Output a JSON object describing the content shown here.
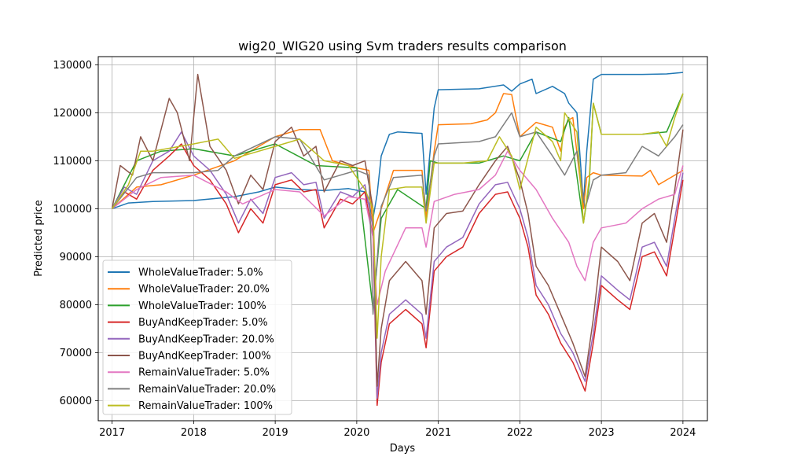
{
  "chart_data": {
    "type": "line",
    "title": "wig20_WIG20 using Svm traders results comparison",
    "xlabel": "Days",
    "ylabel": "Predicted price",
    "xlim": [
      2016.83,
      2024.3
    ],
    "ylim": [
      55800,
      131700
    ],
    "grid": true,
    "legend_position": "lower-left",
    "x_ticks": [
      {
        "value": 2017,
        "label": "2017"
      },
      {
        "value": 2018,
        "label": "2018"
      },
      {
        "value": 2019,
        "label": "2019"
      },
      {
        "value": 2020,
        "label": "2020"
      },
      {
        "value": 2021,
        "label": "2021"
      },
      {
        "value": 2022,
        "label": "2022"
      },
      {
        "value": 2023,
        "label": "2023"
      },
      {
        "value": 2024,
        "label": "2024"
      }
    ],
    "y_ticks": [
      {
        "value": 60000,
        "label": "60000"
      },
      {
        "value": 70000,
        "label": "70000"
      },
      {
        "value": 80000,
        "label": "80000"
      },
      {
        "value": 90000,
        "label": "90000"
      },
      {
        "value": 100000,
        "label": "100000"
      },
      {
        "value": 110000,
        "label": "110000"
      },
      {
        "value": 120000,
        "label": "120000"
      },
      {
        "value": 130000,
        "label": "130000"
      }
    ],
    "series": [
      {
        "name": "WholeValueTrader: 5.0%",
        "color": "#1f77b4",
        "x": [
          2017.0,
          2017.2,
          2017.5,
          2018.0,
          2018.5,
          2018.8,
          2019.0,
          2019.3,
          2019.6,
          2019.9,
          2020.1,
          2020.2,
          2020.25,
          2020.3,
          2020.4,
          2020.5,
          2020.8,
          2020.85,
          2020.95,
          2021.0,
          2021.5,
          2021.8,
          2021.9,
          2022.0,
          2022.15,
          2022.2,
          2022.4,
          2022.55,
          2022.6,
          2022.7,
          2022.78,
          2022.82,
          2022.9,
          2023.0,
          2023.5,
          2023.8,
          2024.0
        ],
        "y": [
          100000,
          101200,
          101500,
          101700,
          102500,
          103500,
          104500,
          104000,
          103800,
          104200,
          103500,
          98000,
          103000,
          111000,
          115500,
          116000,
          115700,
          103000,
          121000,
          124800,
          125000,
          125800,
          124500,
          126000,
          127000,
          124000,
          125500,
          124000,
          122000,
          120000,
          101000,
          112000,
          127000,
          128000,
          128000,
          128100,
          128400
        ]
      },
      {
        "name": "WholeValueTrader: 20.0%",
        "color": "#ff7f0e",
        "x": [
          2017.0,
          2017.3,
          2017.6,
          2018.0,
          2018.5,
          2019.0,
          2019.3,
          2019.55,
          2019.7,
          2020.0,
          2020.15,
          2020.2,
          2020.3,
          2020.45,
          2020.8,
          2020.85,
          2020.95,
          2021.0,
          2021.4,
          2021.6,
          2021.7,
          2021.8,
          2021.9,
          2022.0,
          2022.2,
          2022.4,
          2022.5,
          2022.55,
          2022.6,
          2022.65,
          2022.78,
          2022.82,
          2022.9,
          2023.0,
          2023.5,
          2023.6,
          2023.7,
          2024.0
        ],
        "y": [
          100000,
          104500,
          105000,
          107000,
          110000,
          115000,
          116500,
          116500,
          110000,
          108500,
          108000,
          95000,
          100000,
          108000,
          108000,
          98000,
          112000,
          117500,
          117700,
          118500,
          120000,
          124000,
          123800,
          115000,
          118000,
          117000,
          112000,
          117000,
          118500,
          119000,
          100000,
          106500,
          107500,
          107000,
          106800,
          108000,
          105000,
          108000
        ]
      },
      {
        "name": "WholeValueTrader: 100%",
        "color": "#2ca02c",
        "x": [
          2017.0,
          2017.3,
          2017.6,
          2018.0,
          2018.5,
          2019.0,
          2019.5,
          2020.0,
          2020.2,
          2020.3,
          2020.5,
          2020.85,
          2020.9,
          2021.0,
          2021.5,
          2021.8,
          2022.0,
          2022.2,
          2022.5,
          2022.6,
          2022.78,
          2022.85,
          2022.9,
          2023.0,
          2023.5,
          2023.8,
          2024.0
        ],
        "y": [
          100000,
          110000,
          112000,
          112500,
          111000,
          113500,
          109000,
          108500,
          79000,
          98000,
          104000,
          100000,
          110000,
          109500,
          109500,
          111000,
          110000,
          116000,
          114000,
          119000,
          97000,
          105000,
          122000,
          115500,
          115500,
          116000,
          124000
        ]
      },
      {
        "name": "BuyAndKeepTrader: 5.0%",
        "color": "#d62728",
        "x": [
          2017.0,
          2017.15,
          2017.3,
          2017.5,
          2017.7,
          2017.85,
          2018.0,
          2018.2,
          2018.4,
          2018.55,
          2018.7,
          2018.85,
          2019.0,
          2019.2,
          2019.35,
          2019.5,
          2019.6,
          2019.8,
          2019.95,
          2020.1,
          2020.2,
          2020.25,
          2020.3,
          2020.4,
          2020.6,
          2020.8,
          2020.85,
          2020.95,
          2021.1,
          2021.3,
          2021.5,
          2021.7,
          2021.85,
          2022.0,
          2022.1,
          2022.2,
          2022.35,
          2022.5,
          2022.65,
          2022.8,
          2022.9,
          2023.0,
          2023.2,
          2023.35,
          2023.5,
          2023.65,
          2023.8,
          2023.9,
          2024.0
        ],
        "y": [
          100000,
          103500,
          102000,
          108000,
          111000,
          113500,
          109000,
          106000,
          101000,
          95000,
          100000,
          97000,
          105000,
          106000,
          103500,
          104000,
          96000,
          102000,
          101000,
          103500,
          94000,
          59000,
          68000,
          76000,
          79000,
          76000,
          71000,
          87000,
          90000,
          92000,
          99000,
          103000,
          103500,
          98000,
          92000,
          82000,
          78000,
          72000,
          68000,
          62000,
          72000,
          84000,
          81000,
          79000,
          90000,
          91000,
          86000,
          96000,
          106000
        ]
      },
      {
        "name": "BuyAndKeepTrader: 20.0%",
        "color": "#9467bd",
        "x": [
          2017.0,
          2017.15,
          2017.3,
          2017.5,
          2017.7,
          2017.85,
          2018.0,
          2018.2,
          2018.4,
          2018.55,
          2018.7,
          2018.85,
          2019.0,
          2019.2,
          2019.35,
          2019.5,
          2019.6,
          2019.8,
          2019.95,
          2020.1,
          2020.2,
          2020.25,
          2020.3,
          2020.4,
          2020.6,
          2020.8,
          2020.85,
          2020.95,
          2021.1,
          2021.3,
          2021.5,
          2021.7,
          2021.85,
          2022.0,
          2022.1,
          2022.2,
          2022.35,
          2022.5,
          2022.65,
          2022.8,
          2022.9,
          2023.0,
          2023.2,
          2023.35,
          2023.5,
          2023.65,
          2023.8,
          2023.9,
          2024.0
        ],
        "y": [
          100000,
          104500,
          103000,
          110000,
          112000,
          116000,
          111000,
          108000,
          103000,
          97000,
          102000,
          99000,
          106500,
          107500,
          105000,
          105500,
          98000,
          103500,
          102500,
          105000,
          96000,
          60500,
          70000,
          78000,
          81000,
          78000,
          73000,
          89000,
          92000,
          94000,
          101000,
          105000,
          105500,
          100000,
          94000,
          84000,
          80000,
          74000,
          70000,
          64000,
          74000,
          86000,
          83000,
          81000,
          92000,
          93000,
          88000,
          98000,
          107500
        ]
      },
      {
        "name": "BuyAndKeepTrader: 100%",
        "color": "#8c564b",
        "x": [
          2017.0,
          2017.1,
          2017.25,
          2017.35,
          2017.5,
          2017.7,
          2017.8,
          2017.95,
          2018.05,
          2018.2,
          2018.4,
          2018.55,
          2018.7,
          2018.85,
          2019.0,
          2019.2,
          2019.35,
          2019.5,
          2019.6,
          2019.8,
          2019.95,
          2020.1,
          2020.2,
          2020.25,
          2020.3,
          2020.4,
          2020.6,
          2020.8,
          2020.85,
          2020.95,
          2021.1,
          2021.3,
          2021.5,
          2021.7,
          2021.85,
          2022.0,
          2022.1,
          2022.2,
          2022.35,
          2022.5,
          2022.65,
          2022.8,
          2022.9,
          2023.0,
          2023.2,
          2023.35,
          2023.5,
          2023.65,
          2023.8,
          2023.9,
          2024.0
        ],
        "y": [
          100000,
          109000,
          107000,
          115000,
          110000,
          123000,
          120000,
          110000,
          128000,
          113000,
          108000,
          101000,
          107000,
          104000,
          114000,
          117000,
          111000,
          113000,
          103500,
          110000,
          109000,
          110000,
          100000,
          63000,
          75000,
          85000,
          89000,
          85000,
          78000,
          96000,
          99000,
          99500,
          105000,
          110000,
          113000,
          106000,
          99000,
          88000,
          84000,
          78000,
          72000,
          65000,
          77000,
          92000,
          89000,
          85000,
          97000,
          99000,
          93000,
          104000,
          116500
        ]
      },
      {
        "name": "RemainValueTrader: 5.0%",
        "color": "#e377c2",
        "x": [
          2017.0,
          2017.3,
          2017.6,
          2018.0,
          2018.4,
          2018.6,
          2019.0,
          2019.3,
          2019.6,
          2019.9,
          2020.1,
          2020.2,
          2020.25,
          2020.35,
          2020.6,
          2020.8,
          2020.85,
          2020.95,
          2021.2,
          2021.5,
          2021.7,
          2021.85,
          2022.0,
          2022.2,
          2022.4,
          2022.6,
          2022.7,
          2022.8,
          2022.9,
          2023.0,
          2023.3,
          2023.5,
          2023.7,
          2023.9,
          2024.0
        ],
        "y": [
          100000,
          104000,
          106500,
          107000,
          103500,
          101000,
          104000,
          103500,
          98500,
          102500,
          102000,
          94000,
          80000,
          87000,
          96000,
          96000,
          92000,
          101500,
          103000,
          104000,
          107000,
          112000,
          108000,
          104000,
          98000,
          93000,
          88000,
          85000,
          93000,
          96000,
          97000,
          100000,
          102000,
          103000,
          109000
        ]
      },
      {
        "name": "RemainValueTrader: 20.0%",
        "color": "#7f7f7f",
        "x": [
          2017.0,
          2017.3,
          2017.5,
          2018.0,
          2018.3,
          2018.5,
          2019.0,
          2019.3,
          2019.6,
          2020.0,
          2020.15,
          2020.2,
          2020.3,
          2020.45,
          2020.8,
          2020.85,
          2020.95,
          2021.0,
          2021.5,
          2021.7,
          2021.9,
          2022.0,
          2022.2,
          2022.4,
          2022.55,
          2022.7,
          2022.8,
          2022.9,
          2023.0,
          2023.3,
          2023.5,
          2023.7,
          2023.9,
          2024.0
        ],
        "y": [
          100000,
          106500,
          107500,
          107500,
          108000,
          111000,
          115000,
          114500,
          106000,
          108000,
          107000,
          78000,
          100500,
          106500,
          107000,
          99500,
          111000,
          113500,
          114000,
          115000,
          120000,
          115000,
          116000,
          111000,
          107000,
          112000,
          100000,
          106000,
          107000,
          107500,
          113000,
          111000,
          115000,
          117500
        ]
      },
      {
        "name": "RemainValueTrader: 100%",
        "color": "#bcbd22",
        "x": [
          2017.0,
          2017.2,
          2017.35,
          2017.5,
          2018.0,
          2018.3,
          2018.5,
          2019.0,
          2019.3,
          2019.6,
          2019.9,
          2020.1,
          2020.2,
          2020.25,
          2020.3,
          2020.4,
          2020.6,
          2020.8,
          2020.85,
          2020.95,
          2021.0,
          2021.3,
          2021.6,
          2021.75,
          2021.9,
          2022.0,
          2022.2,
          2022.4,
          2022.5,
          2022.55,
          2022.7,
          2022.78,
          2022.85,
          2022.9,
          2023.0,
          2023.3,
          2023.5,
          2023.7,
          2023.8,
          2023.9,
          2024.0
        ],
        "y": [
          100000,
          105000,
          112000,
          112000,
          113500,
          114500,
          110500,
          113000,
          114500,
          110000,
          109000,
          104000,
          100000,
          73000,
          90000,
          104000,
          104500,
          104500,
          97000,
          109500,
          109500,
          109500,
          110000,
          115000,
          111000,
          104000,
          117000,
          114000,
          110000,
          120000,
          116000,
          97000,
          106000,
          122000,
          115500,
          115500,
          115500,
          116000,
          113000,
          119000,
          124000
        ]
      }
    ]
  }
}
